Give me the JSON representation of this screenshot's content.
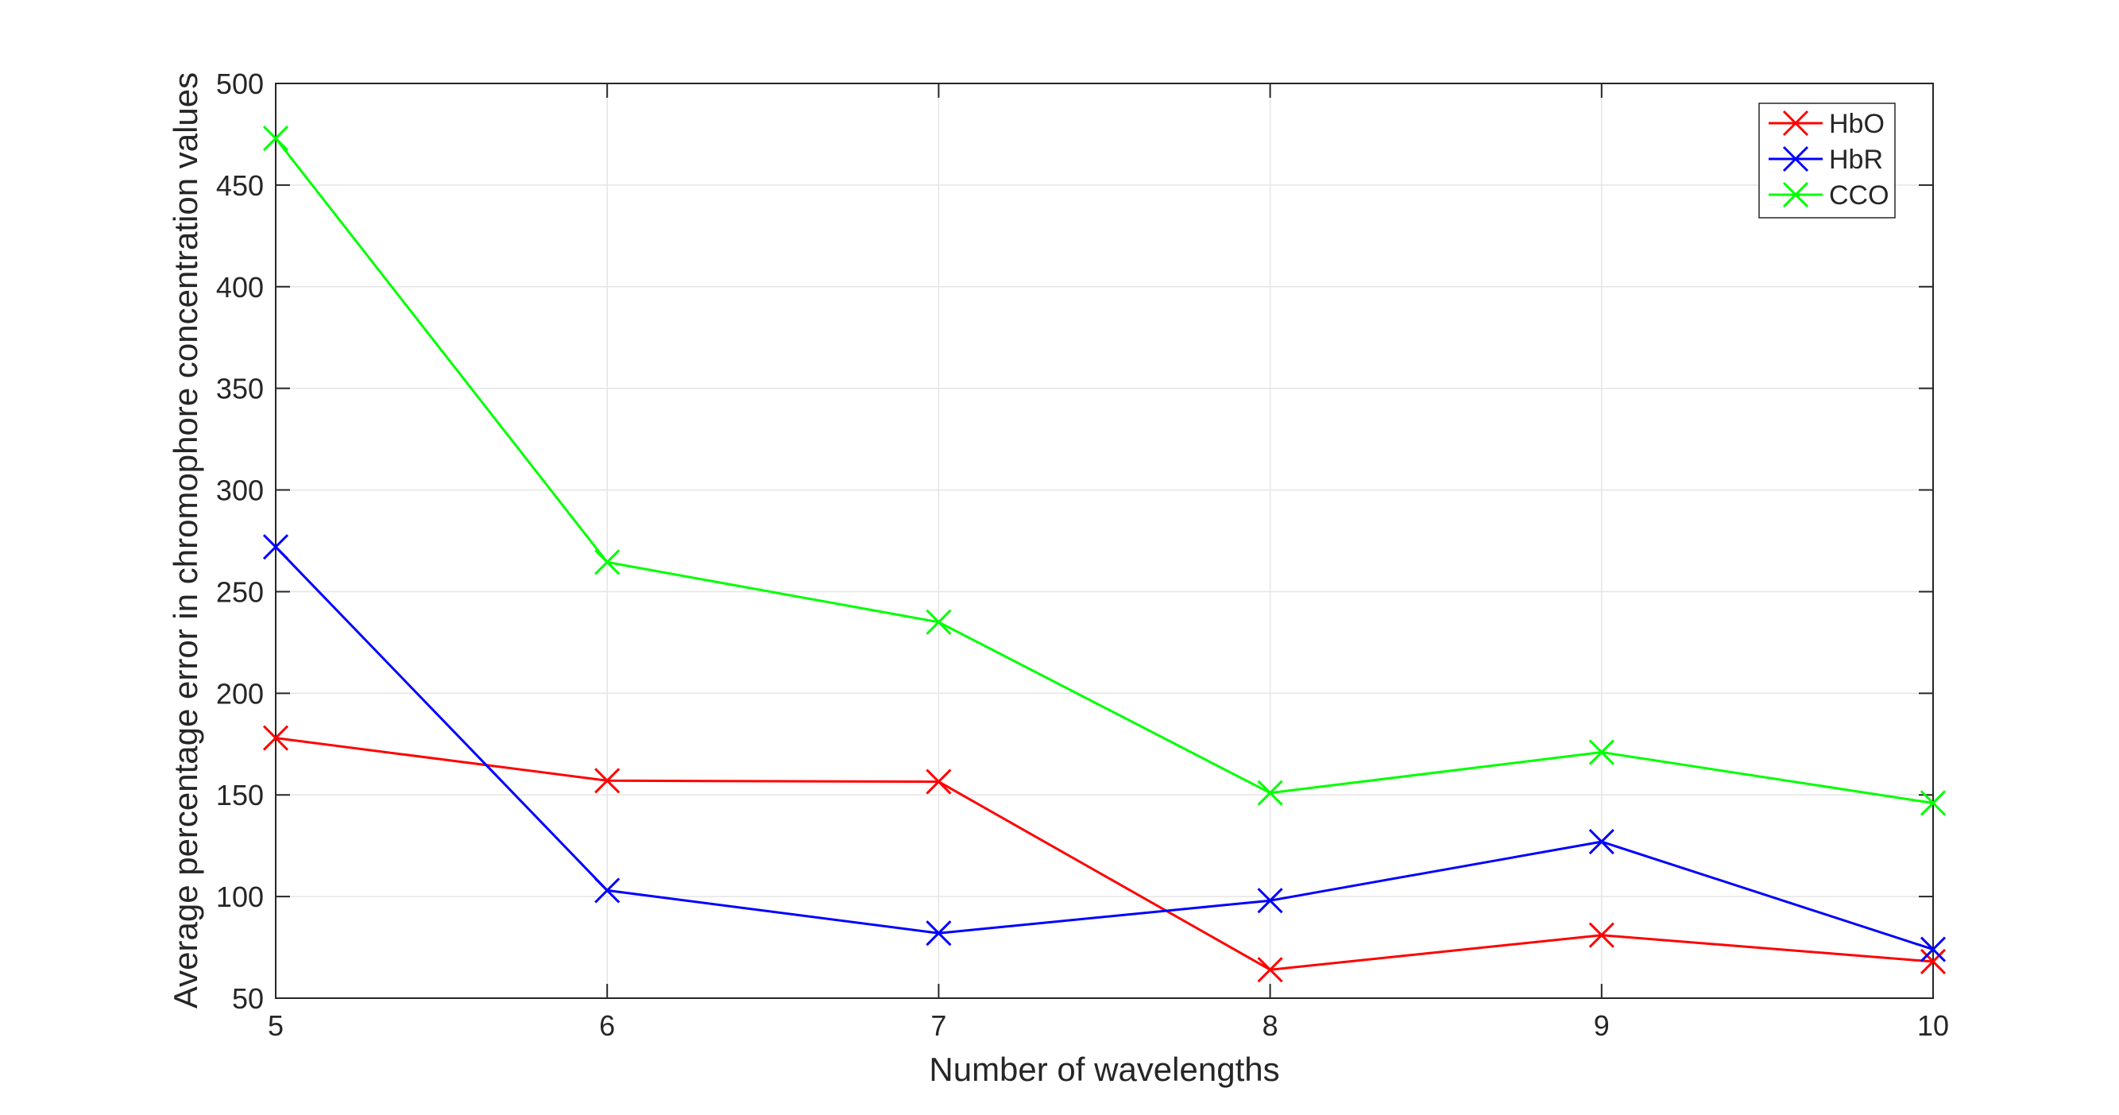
{
  "chart_data": {
    "type": "line",
    "title": "",
    "xlabel": "Number of wavelengths",
    "ylabel": "Average percentage error in chromophore concentration values",
    "x": [
      5,
      6,
      7,
      8,
      9,
      10
    ],
    "xlim": [
      5,
      10
    ],
    "ylim": [
      50,
      500
    ],
    "xticks": [
      "5",
      "6",
      "7",
      "8",
      "9",
      "10"
    ],
    "yticks": [
      "50",
      "100",
      "150",
      "200",
      "250",
      "300",
      "350",
      "400",
      "450",
      "500"
    ],
    "grid": true,
    "legend_position": "top-right",
    "series": [
      {
        "name": "HbO",
        "color": "#ff0000",
        "marker": "x",
        "values": [
          178,
          157,
          156.5,
          64,
          81,
          68
        ]
      },
      {
        "name": "HbR",
        "color": "#0000ff",
        "marker": "x",
        "values": [
          272,
          103,
          82,
          98,
          127,
          74
        ]
      },
      {
        "name": "CCO",
        "color": "#00ff00",
        "marker": "x",
        "values": [
          473,
          264.5,
          235,
          151,
          171,
          146
        ]
      }
    ]
  }
}
